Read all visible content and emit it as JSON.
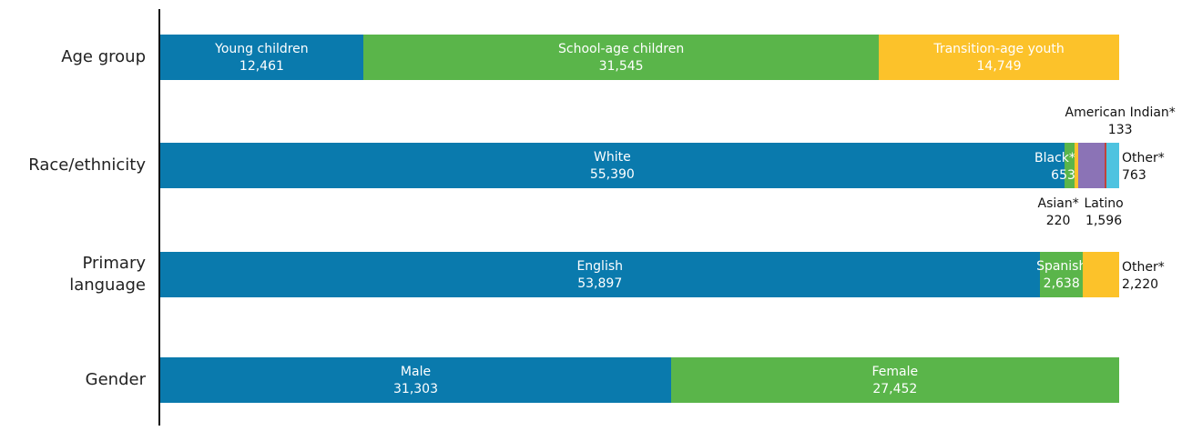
{
  "chart_data": {
    "type": "stacked-bar-horizontal",
    "rows": [
      {
        "label": "Age group",
        "names": [
          "Young children",
          "School-age children",
          "Transition-age youth"
        ],
        "values": [
          12461,
          31545,
          14749
        ],
        "value_labels": [
          "12,461",
          "31,545",
          "14,749"
        ],
        "colors": [
          "#0a7aad",
          "#5ab54a",
          "#fcc22a"
        ]
      },
      {
        "label": "Race/ethnicity",
        "names": [
          "White",
          "Black*",
          "Asian*",
          "Latino",
          "American Indian*",
          "Other*"
        ],
        "values": [
          55390,
          653,
          220,
          1596,
          133,
          763
        ],
        "value_labels": [
          "55,390",
          "653",
          "220",
          "1,596",
          "133",
          "763"
        ],
        "colors": [
          "#0a7aad",
          "#5ab54a",
          "#fcc22a",
          "#8b73b6",
          "#c0443a",
          "#4ec3e0"
        ]
      },
      {
        "label": "Primary language",
        "names": [
          "English",
          "Spanish",
          "Other*"
        ],
        "values": [
          53897,
          2638,
          2220
        ],
        "value_labels": [
          "53,897",
          "2,638",
          "2,220"
        ],
        "colors": [
          "#0a7aad",
          "#5ab54a",
          "#fcc22a"
        ]
      },
      {
        "label": "Gender",
        "names": [
          "Male",
          "Female"
        ],
        "values": [
          31303,
          27452
        ],
        "value_labels": [
          "31,303",
          "27,452"
        ],
        "colors": [
          "#0a7aad",
          "#5ab54a"
        ]
      }
    ]
  }
}
